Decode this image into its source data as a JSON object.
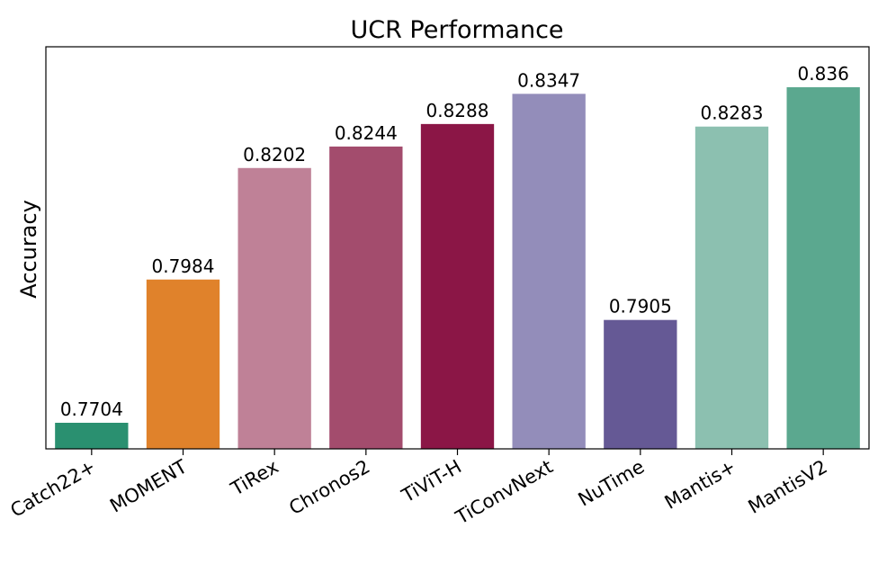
{
  "chart_data": {
    "type": "bar",
    "title": "UCR Performance",
    "xlabel": "",
    "ylabel": "Accuracy",
    "ylim": [
      0.7653,
      0.8439
    ],
    "grid": false,
    "legend": "none",
    "show_y_ticks": false,
    "categories": [
      "Catch22+",
      "MOMENT",
      "TiRex",
      "Chronos2",
      "TiViT-H",
      "TiConvNext",
      "NuTime",
      "Mantis+",
      "MantisV2"
    ],
    "values": [
      0.7704,
      0.7984,
      0.8202,
      0.8244,
      0.8288,
      0.8347,
      0.7905,
      0.8283,
      0.836
    ],
    "value_labels": [
      "0.7704",
      "0.7984",
      "0.8202",
      "0.8244",
      "0.8288",
      "0.8347",
      "0.7905",
      "0.8283",
      "0.836"
    ],
    "colors": [
      "#2a9070",
      "#e0822b",
      "#bf8197",
      "#a34c6d",
      "#8b1646",
      "#938dba",
      "#655995",
      "#8cc0b0",
      "#5ba88f"
    ]
  }
}
